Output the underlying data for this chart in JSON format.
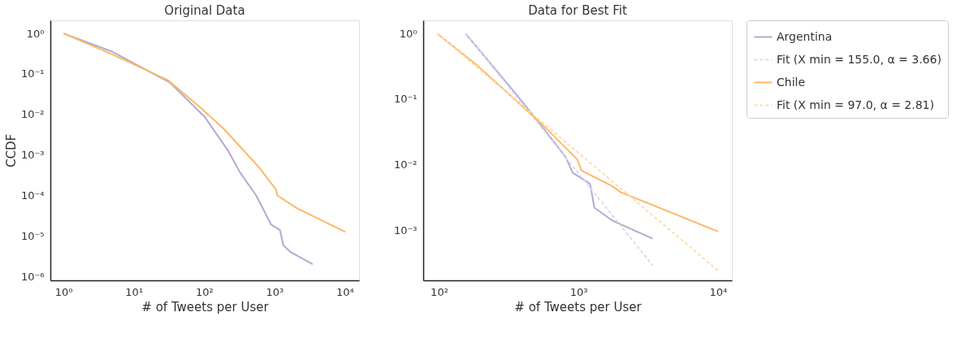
{
  "chart_data": [
    {
      "type": "line",
      "title": "Original Data",
      "xlabel": "# of Tweets per User",
      "ylabel": "CCDF",
      "log": "xy",
      "grid": false,
      "legend": false,
      "xlim": [
        0.65,
        16000
      ],
      "ylim": [
        8e-07,
        2.1
      ],
      "xticks": [
        {
          "value": 1,
          "label": "10⁰"
        },
        {
          "value": 10,
          "label": "10¹"
        },
        {
          "value": 100,
          "label": "10²"
        },
        {
          "value": 1000,
          "label": "10³"
        },
        {
          "value": 10000,
          "label": "10⁴"
        }
      ],
      "yticks": [
        {
          "value": 1e-06,
          "label": "10⁻⁶"
        },
        {
          "value": 1e-05,
          "label": "10⁻⁵"
        },
        {
          "value": 0.0001,
          "label": "10⁻⁴"
        },
        {
          "value": 0.001,
          "label": "10⁻³"
        },
        {
          "value": 0.01,
          "label": "10⁻²"
        },
        {
          "value": 0.1,
          "label": "10⁻¹"
        },
        {
          "value": 1,
          "label": "10⁰"
        }
      ],
      "series": [
        {
          "color": "#b2abd2",
          "line_style": "solid",
          "x": [
            1,
            5,
            33,
            103,
            224,
            324,
            550,
            900,
            1200,
            1340,
            1700,
            3500
          ],
          "values": [
            1,
            0.35,
            0.06,
            0.0085,
            0.0012,
            0.00037,
            0.0001,
            1.9e-05,
            1.4e-05,
            5.9e-06,
            4e-06,
            2e-06
          ]
        },
        {
          "color": "#fdb863",
          "line_style": "solid",
          "x": [
            1,
            5,
            31,
            96,
            190,
            600,
            1050,
            1100,
            2100,
            10200
          ],
          "values": [
            1,
            0.3,
            0.069,
            0.013,
            0.0044,
            0.0005,
            0.00014,
            0.0001,
            4.8e-05,
            1.26e-05
          ]
        }
      ]
    },
    {
      "type": "line",
      "title": "Data for Best Fit",
      "xlabel": "# of Tweets per User",
      "log": "xy",
      "grid": false,
      "legend": "right",
      "xlim": [
        77,
        12600
      ],
      "ylim": [
        0.00017,
        1.6
      ],
      "xticks": [
        {
          "value": 100,
          "label": "10²"
        },
        {
          "value": 1000,
          "label": "10³"
        },
        {
          "value": 10000,
          "label": "10⁴"
        }
      ],
      "yticks": [
        {
          "value": 0.001,
          "label": "10⁻³"
        },
        {
          "value": 0.01,
          "label": "10⁻²"
        },
        {
          "value": 0.1,
          "label": "10⁻¹"
        },
        {
          "value": 1,
          "label": "10⁰"
        }
      ],
      "series": [
        {
          "name": "Argentina",
          "color": "#b2abd2",
          "line_style": "solid",
          "x": [
            155,
            363,
            553,
            810,
            910,
            1210,
            1300,
            1740,
            3400
          ],
          "values": [
            1,
            0.114,
            0.037,
            0.013,
            0.0075,
            0.0051,
            0.0022,
            0.0014,
            0.00074
          ]
        },
        {
          "name": "Fit (X min = 155.0, α = 3.66)",
          "color": "#dcd9ee",
          "line_style": "dashed",
          "x": [
            155,
            3400
          ],
          "values": [
            1,
            0.00029
          ]
        },
        {
          "name": "Chile",
          "color": "#fdb863",
          "line_style": "solid",
          "x": [
            97,
            184,
            325,
            550,
            980,
            1050,
            1740,
            2000,
            10000
          ],
          "values": [
            1,
            0.34,
            0.114,
            0.041,
            0.012,
            0.0081,
            0.0047,
            0.0038,
            0.00095
          ]
        },
        {
          "name": "Fit (X min = 97.0, α = 2.81)",
          "color": "#fedcb3",
          "line_style": "dashed",
          "x": [
            97,
            10000
          ],
          "values": [
            1,
            0.00024
          ]
        }
      ]
    }
  ]
}
